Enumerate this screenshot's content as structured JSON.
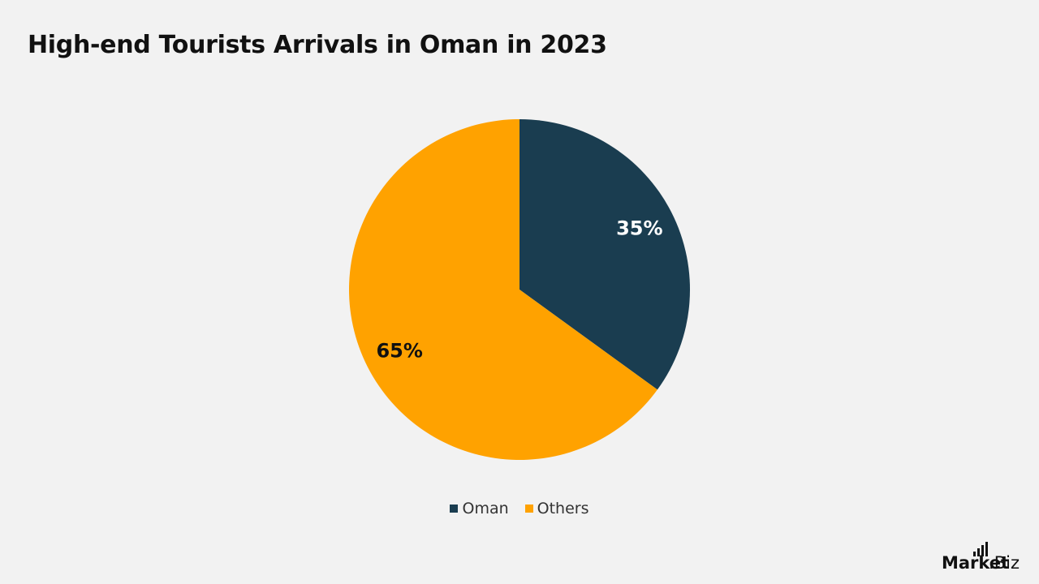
{
  "chart_data": {
    "type": "pie",
    "title": "High-end Tourists Arrivals in Oman in 2023",
    "categories": [
      "Oman",
      "Others"
    ],
    "values": [
      35,
      65
    ],
    "labels": [
      "35%",
      "65%"
    ],
    "colors": [
      "#1a3d50",
      "#ffa200"
    ],
    "label_colors": [
      "#ffffff",
      "#111111"
    ],
    "legend_position": "bottom"
  },
  "brand": {
    "name": "Market",
    "tld": ".Biz"
  }
}
